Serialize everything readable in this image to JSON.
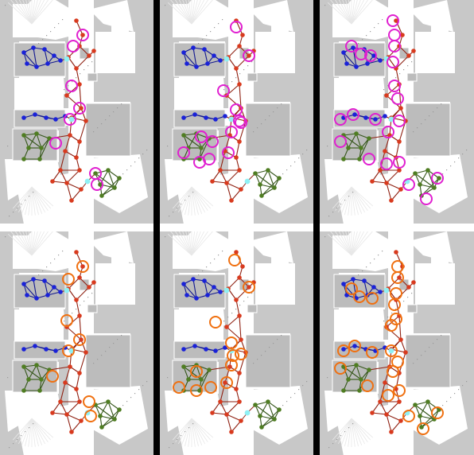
{
  "figure": {
    "grid": {
      "rows": 2,
      "cols": 3
    },
    "colors": {
      "map_background": "#c8c8c8",
      "free_space": "#ffffff",
      "obstacle_speckle": "#9a9a9a",
      "divider_vertical": "#000000",
      "divider_horizontal": "#ffffff",
      "red_nodes": "#d83a1e",
      "red_edges": "#8e1f10",
      "blue_nodes": "#1a22d8",
      "blue_edges": "#12188f",
      "green_nodes": "#4f7d22",
      "green_edges": "#35561a",
      "junction_nodes": "#8ff0f4",
      "highlight_top_row": "#e020d0",
      "highlight_bottom_row": "#f07010"
    },
    "panels": [
      {
        "id": "top-left",
        "highlight": "magenta",
        "highlight_count": 8
      },
      {
        "id": "top-middle",
        "highlight": "magenta",
        "highlight_count": 13
      },
      {
        "id": "top-right",
        "highlight": "magenta",
        "highlight_count": 21
      },
      {
        "id": "bottom-left",
        "highlight": "orange",
        "highlight_count": 8
      },
      {
        "id": "bottom-middle",
        "highlight": "orange",
        "highlight_count": 12
      },
      {
        "id": "bottom-right",
        "highlight": "orange",
        "highlight_count": 22
      }
    ]
  }
}
